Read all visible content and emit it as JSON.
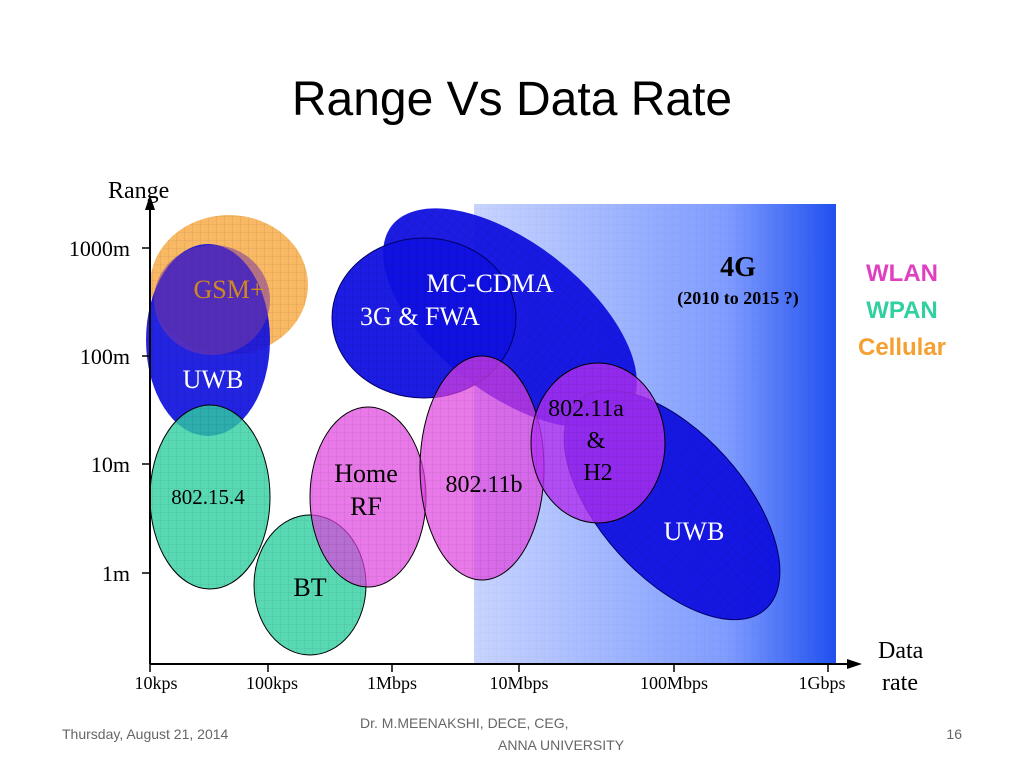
{
  "slide": {
    "title": "Range Vs Data Rate",
    "footer_date": "Thursday, August 21, 2014",
    "footer_author_line1": "Dr. M.MEENAKSHI, DECE, CEG,",
    "footer_author_line2": "ANNA UNIVERSITY",
    "page_number": "16"
  },
  "diagram": {
    "y_axis_label": "Range",
    "x_axis_label_line1": "Data",
    "x_axis_label_line2": "rate",
    "y_ticks": [
      "1000m",
      "100m",
      "10m",
      "1m"
    ],
    "x_ticks": [
      "10kps",
      "100kps",
      "1Mbps",
      "10Mbps",
      "100Mbps",
      "1Gbps"
    ],
    "region_4g_title": "4G",
    "region_4g_subtitle": "(2010 to 2015 ?)",
    "legend": [
      {
        "label": "WLAN",
        "color": "#e040c0"
      },
      {
        "label": "WPAN",
        "color": "#30d0a0"
      },
      {
        "label": "Cellular",
        "color": "#f5a030"
      }
    ],
    "labels": {
      "gsm": "GSM+",
      "uwb_left": "UWB",
      "mc_cdma": "MC-CDMA",
      "fwa": "3G & FWA",
      "zigbee": "802.15.4",
      "bt": "BT",
      "home_rf_1": "Home",
      "home_rf_2": "RF",
      "wifi_b": "802.11b",
      "wifi_a_1": "802.11a",
      "wifi_a_2": "&",
      "wifi_a_3": "H2",
      "uwb_right": "UWB"
    },
    "colors": {
      "cellular": "#f5a030",
      "wlan": "#e040e0",
      "wpan": "#30d0a0",
      "blue": "#1010e0"
    }
  }
}
